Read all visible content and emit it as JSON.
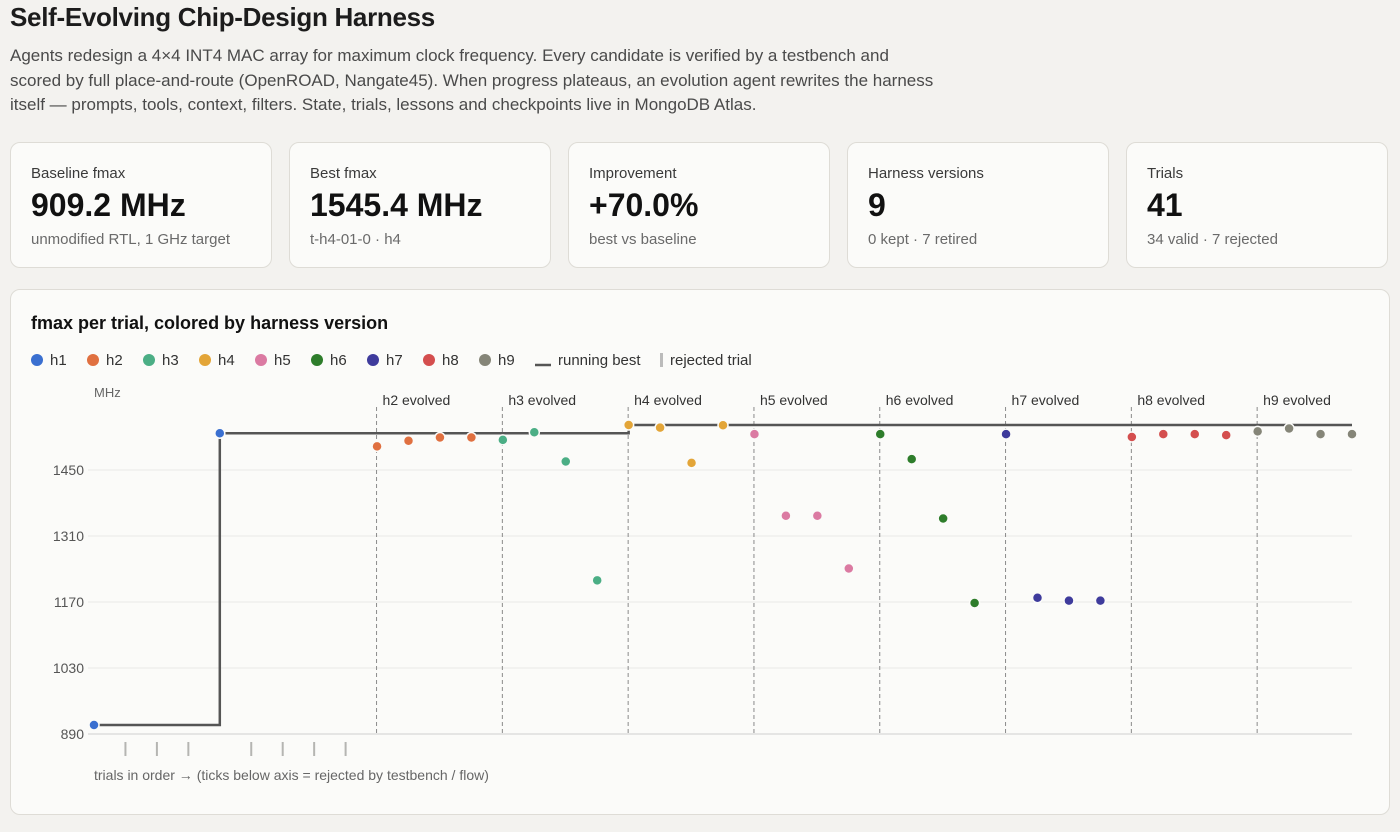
{
  "page": {
    "title": "Self-Evolving Chip-Design Harness",
    "description": "Agents redesign a 4×4 INT4 MAC array for maximum clock frequency. Every candidate is verified by a testbench and scored by full place-and-route (OpenROAD, Nangate45). When progress plateaus, an evolution agent rewrites the harness itself — prompts, tools, context, filters. State, trials, lessons and checkpoints live in MongoDB Atlas."
  },
  "stats": [
    {
      "label": "Baseline fmax",
      "value": "909.2 MHz",
      "sub": "unmodified RTL, 1 GHz target"
    },
    {
      "label": "Best fmax",
      "value": "1545.4 MHz",
      "sub": "t-h4-01-0 · h4"
    },
    {
      "label": "Improvement",
      "value": "+70.0%",
      "sub": "best vs baseline"
    },
    {
      "label": "Harness versions",
      "value": "9",
      "sub": "0 kept · 7 retired"
    },
    {
      "label": "Trials",
      "value": "41",
      "sub": "34 valid · 7 rejected"
    }
  ],
  "chart_data": {
    "type": "scatter",
    "title": "fmax per trial, colored by harness version",
    "ylabel": "MHz",
    "xlabel": "trials in order → (ticks below axis = rejected by testbench / flow)",
    "ylim": [
      890,
      1590
    ],
    "yticks": [
      890,
      1030,
      1170,
      1310,
      1450
    ],
    "legend": [
      {
        "name": "h1",
        "color": "#3a6fd0"
      },
      {
        "name": "h2",
        "color": "#e07040"
      },
      {
        "name": "h3",
        "color": "#4bae85"
      },
      {
        "name": "h4",
        "color": "#e3a538"
      },
      {
        "name": "h5",
        "color": "#db7aa2"
      },
      {
        "name": "h6",
        "color": "#2e7d2b"
      },
      {
        "name": "h7",
        "color": "#3e3b9c"
      },
      {
        "name": "h8",
        "color": "#d44e4e"
      },
      {
        "name": "h9",
        "color": "#858578"
      }
    ],
    "legend_running_best": "running best",
    "legend_rejected": "rejected trial",
    "evolution_markers": [
      {
        "index": 9,
        "label": "h2 evolved"
      },
      {
        "index": 13,
        "label": "h3 evolved"
      },
      {
        "index": 17,
        "label": "h4 evolved"
      },
      {
        "index": 21,
        "label": "h5 evolved"
      },
      {
        "index": 25,
        "label": "h6 evolved"
      },
      {
        "index": 29,
        "label": "h7 evolved"
      },
      {
        "index": 33,
        "label": "h8 evolved"
      },
      {
        "index": 37,
        "label": "h9 evolved"
      }
    ],
    "points": [
      {
        "i": 0,
        "v": 1,
        "y": 909.2
      },
      {
        "i": 4,
        "v": 1,
        "y": 1528
      },
      {
        "i": 9,
        "v": 2,
        "y": 1500
      },
      {
        "i": 10,
        "v": 2,
        "y": 1512
      },
      {
        "i": 11,
        "v": 2,
        "y": 1519
      },
      {
        "i": 12,
        "v": 2,
        "y": 1519
      },
      {
        "i": 13,
        "v": 3,
        "y": 1514
      },
      {
        "i": 14,
        "v": 3,
        "y": 1530
      },
      {
        "i": 15,
        "v": 3,
        "y": 1468
      },
      {
        "i": 16,
        "v": 3,
        "y": 1216
      },
      {
        "i": 17,
        "v": 4,
        "y": 1545.4
      },
      {
        "i": 18,
        "v": 4,
        "y": 1540
      },
      {
        "i": 19,
        "v": 4,
        "y": 1465
      },
      {
        "i": 20,
        "v": 4,
        "y": 1545
      },
      {
        "i": 21,
        "v": 5,
        "y": 1526
      },
      {
        "i": 22,
        "v": 5,
        "y": 1353
      },
      {
        "i": 23,
        "v": 5,
        "y": 1353
      },
      {
        "i": 24,
        "v": 5,
        "y": 1241
      },
      {
        "i": 25,
        "v": 6,
        "y": 1526
      },
      {
        "i": 26,
        "v": 6,
        "y": 1473
      },
      {
        "i": 27,
        "v": 6,
        "y": 1347
      },
      {
        "i": 28,
        "v": 6,
        "y": 1168
      },
      {
        "i": 29,
        "v": 7,
        "y": 1526
      },
      {
        "i": 30,
        "v": 7,
        "y": 1179
      },
      {
        "i": 31,
        "v": 7,
        "y": 1173
      },
      {
        "i": 32,
        "v": 7,
        "y": 1173
      },
      {
        "i": 33,
        "v": 8,
        "y": 1520
      },
      {
        "i": 34,
        "v": 8,
        "y": 1526
      },
      {
        "i": 35,
        "v": 8,
        "y": 1526
      },
      {
        "i": 36,
        "v": 8,
        "y": 1524
      },
      {
        "i": 37,
        "v": 9,
        "y": 1532
      },
      {
        "i": 38,
        "v": 9,
        "y": 1538
      },
      {
        "i": 39,
        "v": 9,
        "y": 1526
      },
      {
        "i": 40,
        "v": 9,
        "y": 1526
      }
    ],
    "rejected_trials": [
      1,
      2,
      3,
      5,
      6,
      7,
      8
    ],
    "running_best": [
      {
        "i": 0,
        "y": 909.2
      },
      {
        "i": 4,
        "y": 1528
      },
      {
        "i": 17,
        "y": 1545.4
      },
      {
        "i": 40,
        "y": 1545.4
      }
    ]
  }
}
